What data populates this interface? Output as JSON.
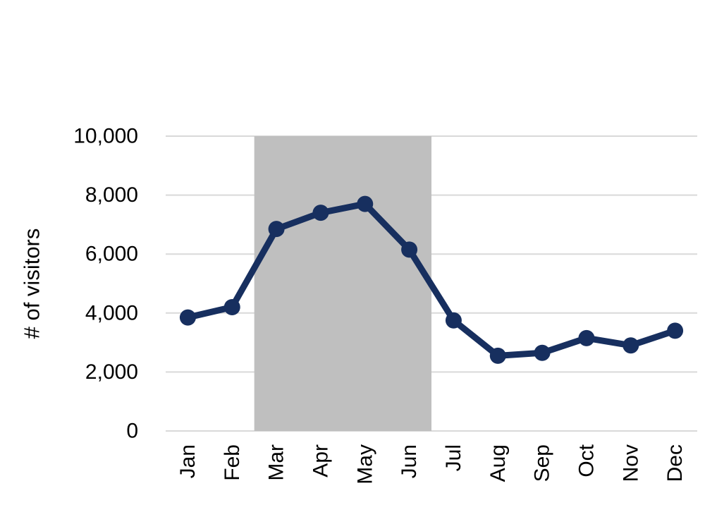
{
  "chart_data": {
    "type": "line",
    "title": "",
    "xlabel": "",
    "ylabel": "# of visitors",
    "categories": [
      "Jan",
      "Feb",
      "Mar",
      "Apr",
      "May",
      "Jun",
      "Jul",
      "Aug",
      "Sep",
      "Oct",
      "Nov",
      "Dec"
    ],
    "values": [
      3850,
      4200,
      6850,
      7400,
      7700,
      6150,
      3750,
      2550,
      2650,
      3150,
      2900,
      3400
    ],
    "ylim": [
      0,
      10000
    ],
    "yticks": [
      0,
      2000,
      4000,
      6000,
      8000,
      10000
    ],
    "ytick_labels": [
      "0",
      "2,000",
      "4,000",
      "6,000",
      "8,000",
      "10,000"
    ],
    "grid": "horizontal",
    "legend": "none",
    "highlight_band": {
      "from_category": "Mar",
      "to_category": "Jun",
      "color": "#bfbfbf"
    },
    "line_color": "#172f5f",
    "marker_shape": "circle",
    "marker_color": "#172f5f",
    "gridline_color": "#d9d9d9",
    "text_color": "#000000",
    "background_color": "#ffffff"
  }
}
